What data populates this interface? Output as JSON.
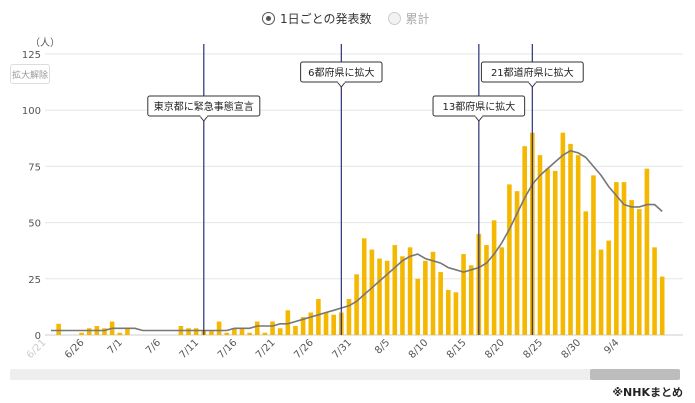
{
  "controls": {
    "daily_label": "1日ごとの発表数",
    "cumulative_label": "累計",
    "reset_label": "拡大解除"
  },
  "source_note": "※NHKまとめ",
  "colors": {
    "bar": "#f5b800",
    "line": "#777777",
    "event_line": "#2b2f7a"
  },
  "chart_data": {
    "type": "bar",
    "y_unit": "（人）",
    "ylim": [
      0,
      125
    ],
    "y_ticks": [
      0,
      25,
      50,
      75,
      100,
      125
    ],
    "grid": true,
    "start_date": "6/22",
    "x_tick_labels": [
      "6/21",
      "6/26",
      "7/1",
      "7/6",
      "7/11",
      "7/16",
      "7/21",
      "7/26",
      "7/31",
      "8/5",
      "8/10",
      "8/15",
      "8/20",
      "8/25",
      "8/30",
      "9/4"
    ],
    "series": [
      {
        "type": "bar",
        "values": [
          0,
          5,
          0,
          0,
          1,
          3,
          4,
          3,
          6,
          1,
          3,
          0,
          0,
          0,
          0,
          0,
          0,
          4,
          3,
          3,
          2,
          2,
          6,
          1,
          3,
          3,
          1,
          6,
          1,
          6,
          3,
          11,
          4,
          8,
          10,
          16,
          10,
          9,
          10,
          16,
          27,
          43,
          38,
          34,
          33,
          40,
          35,
          39,
          25,
          33,
          37,
          28,
          20,
          19,
          36,
          31,
          45,
          40,
          51,
          39,
          67,
          64,
          84,
          90,
          80,
          74,
          73,
          90,
          85,
          80,
          55,
          71,
          38,
          42,
          68,
          68,
          60,
          56,
          74,
          39,
          26
        ],
        "dates": [
          "6/22",
          "6/23",
          "6/24",
          "6/25",
          "6/26",
          "6/27",
          "6/28",
          "6/29",
          "6/30",
          "7/1",
          "7/2",
          "7/3",
          "7/4",
          "7/5",
          "7/6",
          "7/7",
          "7/8",
          "7/9",
          "7/10",
          "7/11",
          "7/12",
          "7/13",
          "7/14",
          "7/15",
          "7/16",
          "7/17",
          "7/18",
          "7/19",
          "7/20",
          "7/21",
          "7/22",
          "7/23",
          "7/24",
          "7/25",
          "7/26",
          "7/27",
          "7/28",
          "7/29",
          "7/30",
          "7/31",
          "8/1",
          "8/2",
          "8/3",
          "8/4",
          "8/5",
          "8/6",
          "8/7",
          "8/8",
          "8/9",
          "8/10",
          "8/11",
          "8/12",
          "8/13",
          "8/14",
          "8/15",
          "8/16",
          "8/17",
          "8/18",
          "8/19",
          "8/20",
          "8/21",
          "8/22",
          "8/23",
          "8/24",
          "8/25",
          "8/26",
          "8/27",
          "8/28",
          "8/29",
          "8/30",
          "8/31",
          "9/1",
          "9/2",
          "9/3",
          "9/4",
          "9/5",
          "9/6",
          "9/7",
          "9/8",
          "9/9",
          "9/10"
        ]
      },
      {
        "type": "line",
        "values": [
          2,
          2,
          2,
          2,
          2,
          2,
          2,
          2,
          3,
          3,
          3,
          3,
          2,
          2,
          2,
          2,
          2,
          2,
          2,
          2,
          2,
          2,
          2,
          2,
          3,
          3,
          3,
          4,
          4,
          4,
          5,
          5,
          6,
          7,
          8,
          9,
          10,
          11,
          12,
          13,
          15,
          18,
          21,
          24,
          27,
          30,
          33,
          35,
          36,
          34,
          33,
          32,
          30,
          29,
          28,
          29,
          30,
          32,
          36,
          41,
          47,
          54,
          61,
          67,
          71,
          74,
          77,
          80,
          82,
          81,
          79,
          75,
          71,
          66,
          62,
          58,
          57,
          57,
          58,
          58,
          55
        ]
      }
    ],
    "events": [
      {
        "date": "7/12",
        "label": "東京都に緊急事態宣言"
      },
      {
        "date": "7/30",
        "label": "6都府県に拡大"
      },
      {
        "date": "8/17",
        "label": "13都府県に拡大"
      },
      {
        "date": "8/24",
        "label": "21都道府県に拡大"
      }
    ]
  }
}
